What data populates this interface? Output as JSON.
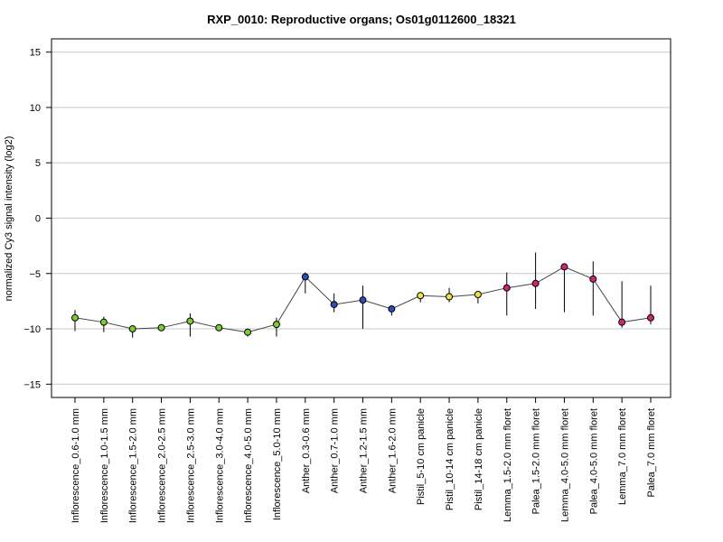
{
  "chart_data": {
    "type": "line",
    "title": "RXP_0010: Reproductive organs; Os01g0112600_18321",
    "xlabel": "",
    "ylabel": "normalized Cy3 signal intensity (log2)",
    "ylim": [
      -16.2,
      16.2
    ],
    "yticks": [
      15,
      10,
      5,
      0,
      -5,
      -10,
      -15
    ],
    "grid": true,
    "categories": [
      "Inflorescence_0.6-1.0 mm",
      "Inflorescence_1.0-1.5 mm",
      "Inflorescence_1.5-2.0 mm",
      "Inflorescence_2.0-2.5 mm",
      "Inflorescence_2.5-3.0 mm",
      "Inflorescence_3.0-4.0 mm",
      "Inflorescence_4.0-5.0 mm",
      "Inflorescence_5.0-10 mm",
      "Anther_0.3-0.6 mm",
      "Anther_0.7-1.0 mm",
      "Anther_1.2-1.5 mm",
      "Anther_1.6-2.0 mm",
      "Pistil_5-10 cm panicle",
      "Pistil_10-14 cm panicle",
      "Pistil_14-18 cm panicle",
      "Lemma_1.5-2.0 mm floret",
      "Palea_1.5-2.0 mm floret",
      "Lemma_4.0-5.0 mm floret",
      "Palea_4.0-5.0 mm floret",
      "Lemma_7.0 mm floret",
      "Palea_7.0 mm floret"
    ],
    "values": [
      -9.0,
      -9.4,
      -10.0,
      -9.9,
      -9.3,
      -9.9,
      -10.3,
      -9.6,
      -5.3,
      -7.8,
      -7.4,
      -8.2,
      -7.0,
      -7.1,
      -6.9,
      -6.3,
      -5.9,
      -4.4,
      -5.5,
      -9.4,
      -9.0
    ],
    "err_low": [
      -10.2,
      -10.3,
      -10.8,
      -10.0,
      -10.7,
      -10.0,
      -10.7,
      -10.7,
      -6.8,
      -8.5,
      -10.0,
      -8.8,
      -7.6,
      -7.6,
      -7.7,
      -8.8,
      -8.2,
      -8.5,
      -8.8,
      -9.9,
      -9.6
    ],
    "err_high": [
      -8.3,
      -8.9,
      -9.8,
      -9.7,
      -8.6,
      -9.8,
      -10.0,
      -9.0,
      -4.9,
      -6.8,
      -6.1,
      -7.9,
      -6.7,
      -6.3,
      -6.7,
      -4.9,
      -3.1,
      -4.2,
      -3.9,
      -5.7,
      -6.1
    ],
    "point_colors": [
      "#7ccd32",
      "#7ccd32",
      "#7ccd32",
      "#7ccd32",
      "#7ccd32",
      "#7ccd32",
      "#7ccd32",
      "#7ccd32",
      "#2a4fb0",
      "#2a4fb0",
      "#2a4fb0",
      "#2a4fb0",
      "#f0e24a",
      "#f0e24a",
      "#f0e24a",
      "#d2237a",
      "#d2237a",
      "#d2237a",
      "#d2237a",
      "#d2237a",
      "#d2237a"
    ],
    "line_color": "#444444",
    "grid_color": "#c8c8c8"
  }
}
